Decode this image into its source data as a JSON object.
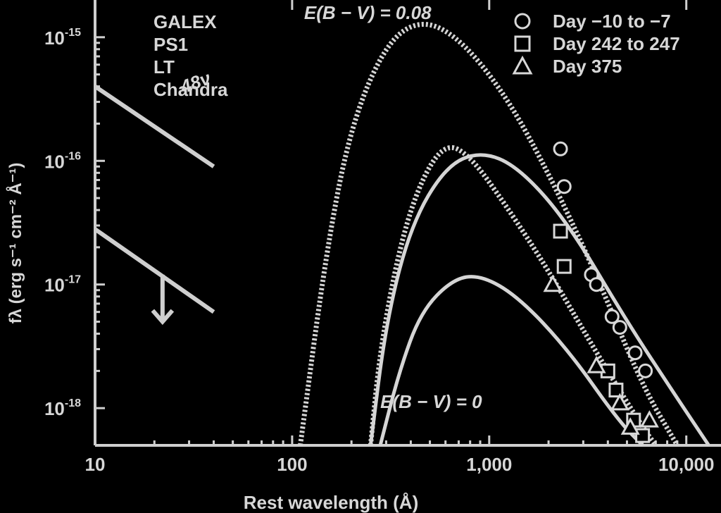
{
  "chart_data": {
    "type": "line",
    "xlabel": "Rest wavelength (Å)",
    "ylabel": "fλ (erg s⁻¹ cm⁻² Å⁻¹)",
    "x_scale": "log",
    "y_scale": "log",
    "xlim": [
      10,
      15000
    ],
    "ylim": [
      5e-19,
      2e-15
    ],
    "x_ticks": [
      {
        "value": 10,
        "label": "10"
      },
      {
        "value": 100,
        "label": "100"
      },
      {
        "value": 1000,
        "label": "1,000"
      },
      {
        "value": 10000,
        "label": "10,000"
      }
    ],
    "y_ticks": [
      {
        "value": 1e-15,
        "base": "10",
        "exp": "-15"
      },
      {
        "value": 1e-16,
        "base": "10",
        "exp": "-16"
      },
      {
        "value": 1e-17,
        "base": "10",
        "exp": "-17"
      },
      {
        "value": 1e-18,
        "base": "10",
        "exp": "-18"
      }
    ],
    "instruments": [
      "GALEX",
      "PS1",
      "LT",
      "Chandra"
    ],
    "legend": [
      {
        "label": "Day −10 to −7",
        "marker": "circle"
      },
      {
        "label": "Day 242 to 247",
        "marker": "square"
      },
      {
        "label": "Day 375",
        "marker": "triangle"
      }
    ],
    "annotations": [
      {
        "text": "E(B − V) = 0.08",
        "x": 115,
        "y": 1.4e-15
      },
      {
        "text": "E(B − V) = 0",
        "x": 280,
        "y": 1e-18
      },
      {
        "text": "48ν",
        "x": 28,
        "y": 3.5e-16
      }
    ],
    "series": [
      {
        "style": "dotted",
        "points": [
          [
            110,
            5e-19
          ],
          [
            150,
            2e-17
          ],
          [
            200,
            2e-16
          ],
          [
            300,
            9e-16
          ],
          [
            450,
            1.4e-15
          ],
          [
            700,
            1e-15
          ],
          [
            1200,
            3.5e-16
          ],
          [
            2000,
            8e-17
          ],
          [
            3500,
            1.2e-17
          ],
          [
            6000,
            1.5e-18
          ],
          [
            9000,
            5e-19
          ]
        ]
      },
      {
        "style": "dotted",
        "points": [
          [
            250,
            5e-19
          ],
          [
            280,
            3e-18
          ],
          [
            350,
            2e-17
          ],
          [
            450,
            7e-17
          ],
          [
            600,
            1.4e-16
          ],
          [
            800,
            1.1e-16
          ],
          [
            1200,
            4.5e-17
          ],
          [
            2000,
            1.3e-17
          ],
          [
            3500,
            2.8e-18
          ],
          [
            6000,
            7e-19
          ],
          [
            7000,
            5e-19
          ]
        ]
      },
      {
        "style": "solid",
        "points": [
          [
            250,
            5e-19
          ],
          [
            300,
            5e-18
          ],
          [
            400,
            3e-17
          ],
          [
            600,
            9e-17
          ],
          [
            900,
            1.2e-16
          ],
          [
            1400,
            9e-17
          ],
          [
            2500,
            3.2e-17
          ],
          [
            5000,
            5e-18
          ],
          [
            9000,
            1.2e-18
          ],
          [
            13000,
            5e-19
          ]
        ]
      },
      {
        "style": "solid",
        "points": [
          [
            280,
            5e-19
          ],
          [
            350,
            2e-18
          ],
          [
            450,
            6e-18
          ],
          [
            650,
            1.1e-17
          ],
          [
            900,
            1.2e-17
          ],
          [
            1400,
            8e-18
          ],
          [
            2500,
            3e-18
          ],
          [
            4500,
            8e-19
          ],
          [
            6000,
            5e-19
          ]
        ]
      },
      {
        "style": "limit",
        "points": [
          [
            10,
            4e-16
          ],
          [
            40,
            9e-17
          ]
        ]
      },
      {
        "style": "limit",
        "points": [
          [
            10,
            2.8e-17
          ],
          [
            40,
            6e-18
          ]
        ]
      }
    ],
    "upper_limit_arrow": {
      "x": 22,
      "from": 1.2e-17,
      "to": 5e-18
    },
    "markers": [
      {
        "shape": "circle",
        "points": [
          [
            2300,
            1.25e-16
          ],
          [
            2400,
            6.2e-17
          ],
          [
            3300,
            1.2e-17
          ],
          [
            3500,
            1e-17
          ],
          [
            4200,
            5.5e-18
          ],
          [
            4600,
            4.5e-18
          ],
          [
            5500,
            2.8e-18
          ],
          [
            6200,
            2e-18
          ]
        ]
      },
      {
        "shape": "square",
        "points": [
          [
            2300,
            2.7e-17
          ],
          [
            2400,
            1.4e-17
          ],
          [
            4000,
            2e-18
          ],
          [
            4400,
            1.4e-18
          ],
          [
            5400,
            8e-19
          ],
          [
            6000,
            6e-19
          ]
        ]
      },
      {
        "shape": "triangle",
        "points": [
          [
            2100,
            1e-17
          ],
          [
            3500,
            2.2e-18
          ],
          [
            4600,
            1.1e-18
          ],
          [
            5200,
            7e-19
          ],
          [
            6500,
            8e-19
          ]
        ]
      }
    ]
  }
}
